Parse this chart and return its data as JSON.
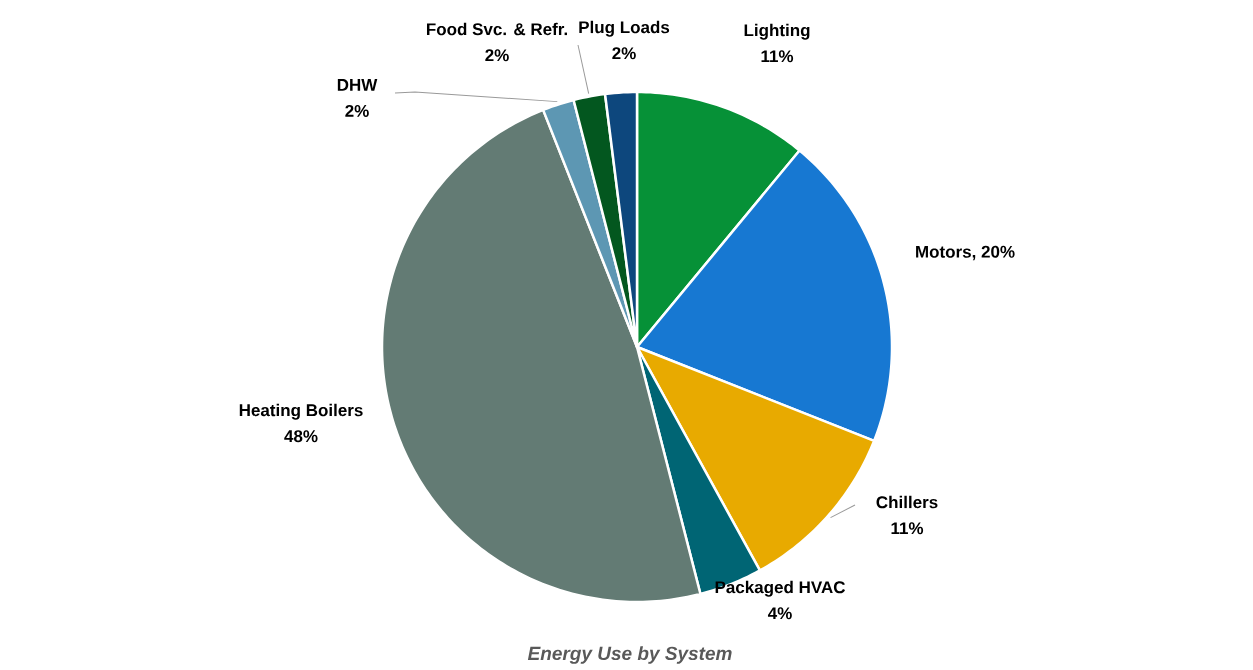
{
  "chart_data": {
    "type": "pie",
    "title": "Energy Use by System",
    "categories": [
      "Lighting",
      "Motors, 20%",
      "Chillers",
      "Packaged HVAC",
      "Heating Boilers",
      "DHW",
      "Food Svc. & Refr.",
      "Plug Loads"
    ],
    "values": [
      11,
      20,
      11,
      4,
      48,
      2,
      2,
      2
    ],
    "value_labels": [
      "11%",
      null,
      "11%",
      "4%",
      "48%",
      "2%",
      "2%",
      "2%"
    ],
    "colors": [
      "#069137",
      "#1778d2",
      "#e8aa00",
      "#006574",
      "#637b74",
      "#5d97b3",
      "#03571f",
      "#0d477d"
    ],
    "legend": false
  }
}
